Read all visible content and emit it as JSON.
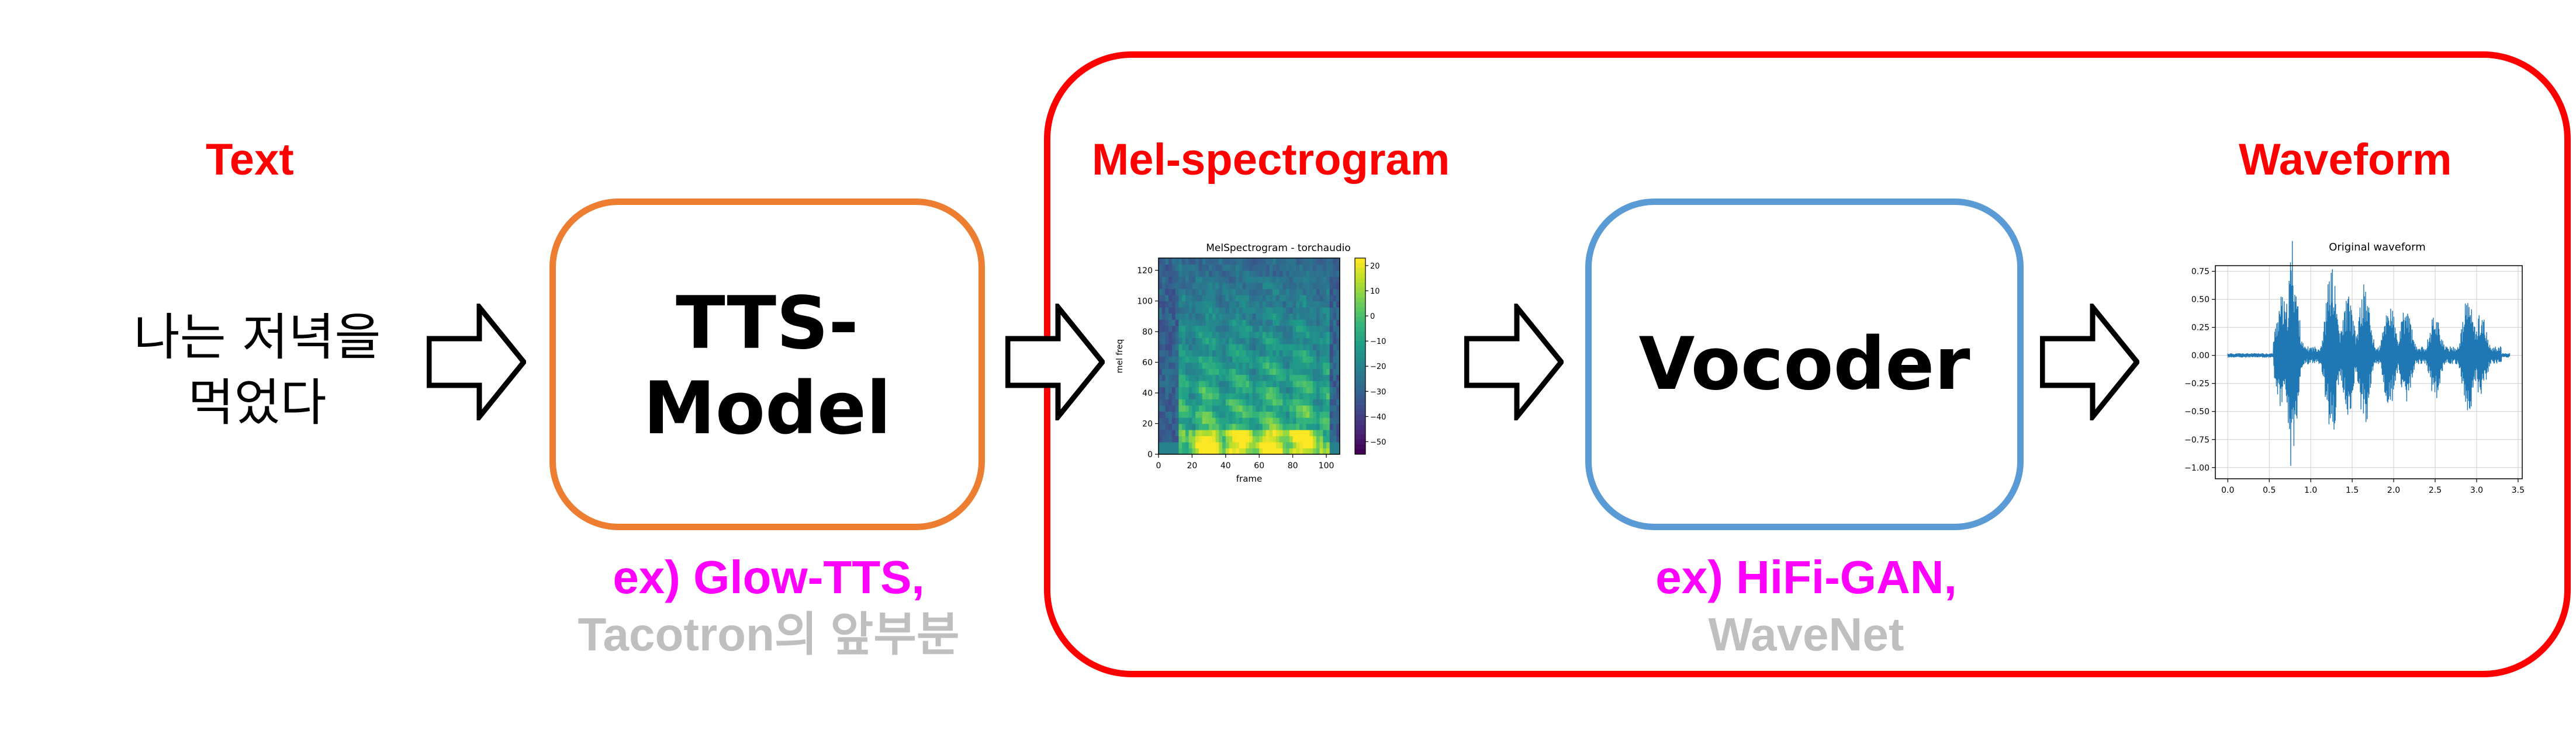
{
  "labels": {
    "text": "Text",
    "mel_spectrogram": "Mel-spectrogram",
    "waveform": "Waveform"
  },
  "input_text": {
    "line1": "나는 저녁을",
    "line2": "먹었다"
  },
  "tts_box": {
    "line1": "TTS-",
    "line2": "Model",
    "examples_line1": "ex) Glow-TTS,",
    "examples_line2": "Tacotron의 앞부분"
  },
  "vocoder_box": {
    "label": "Vocoder",
    "examples_line1": "ex) HiFi-GAN,",
    "examples_line2": "WaveNet"
  },
  "spectrogram_plot": {
    "title": "MelSpectrogram - torchaudio",
    "xlabel": "frame",
    "ylabel": "mel freq",
    "xticks": [
      "0",
      "20",
      "40",
      "60",
      "80",
      "100"
    ],
    "yticks": [
      "0",
      "20",
      "40",
      "60",
      "80",
      "100",
      "120"
    ],
    "colorbar_ticks": [
      "20",
      "10",
      "0",
      "−10",
      "−20",
      "−30",
      "−40",
      "−50"
    ]
  },
  "waveform_plot": {
    "title": "Original waveform",
    "xticks": [
      "0.0",
      "0.5",
      "1.0",
      "1.5",
      "2.0",
      "2.5",
      "3.0",
      "3.5"
    ],
    "yticks": [
      "0.75",
      "0.50",
      "0.25",
      "0.00",
      "−0.25",
      "−0.50",
      "−0.75",
      "−1.00"
    ]
  },
  "colors": {
    "label_red": "#ff0000",
    "tts_border": "#ed7d31",
    "vocoder_border": "#5b9bd5",
    "group_border": "#ff0000",
    "example_magenta": "#ff00ff",
    "example_gray": "#bfbfbf",
    "wave_color": "#1f77b4"
  },
  "chart_data": [
    {
      "type": "heatmap",
      "title": "MelSpectrogram - torchaudio",
      "xlabel": "frame",
      "ylabel": "mel freq",
      "xlim": [
        0,
        108
      ],
      "ylim": [
        0,
        128
      ],
      "colorbar_range": [
        -55,
        23
      ],
      "colormap": "viridis"
    },
    {
      "type": "line",
      "title": "Original waveform",
      "xlim": [
        -0.15,
        3.55
      ],
      "ylim": [
        -1.1,
        0.8
      ],
      "grid": true,
      "color": "#1f77b4"
    }
  ]
}
